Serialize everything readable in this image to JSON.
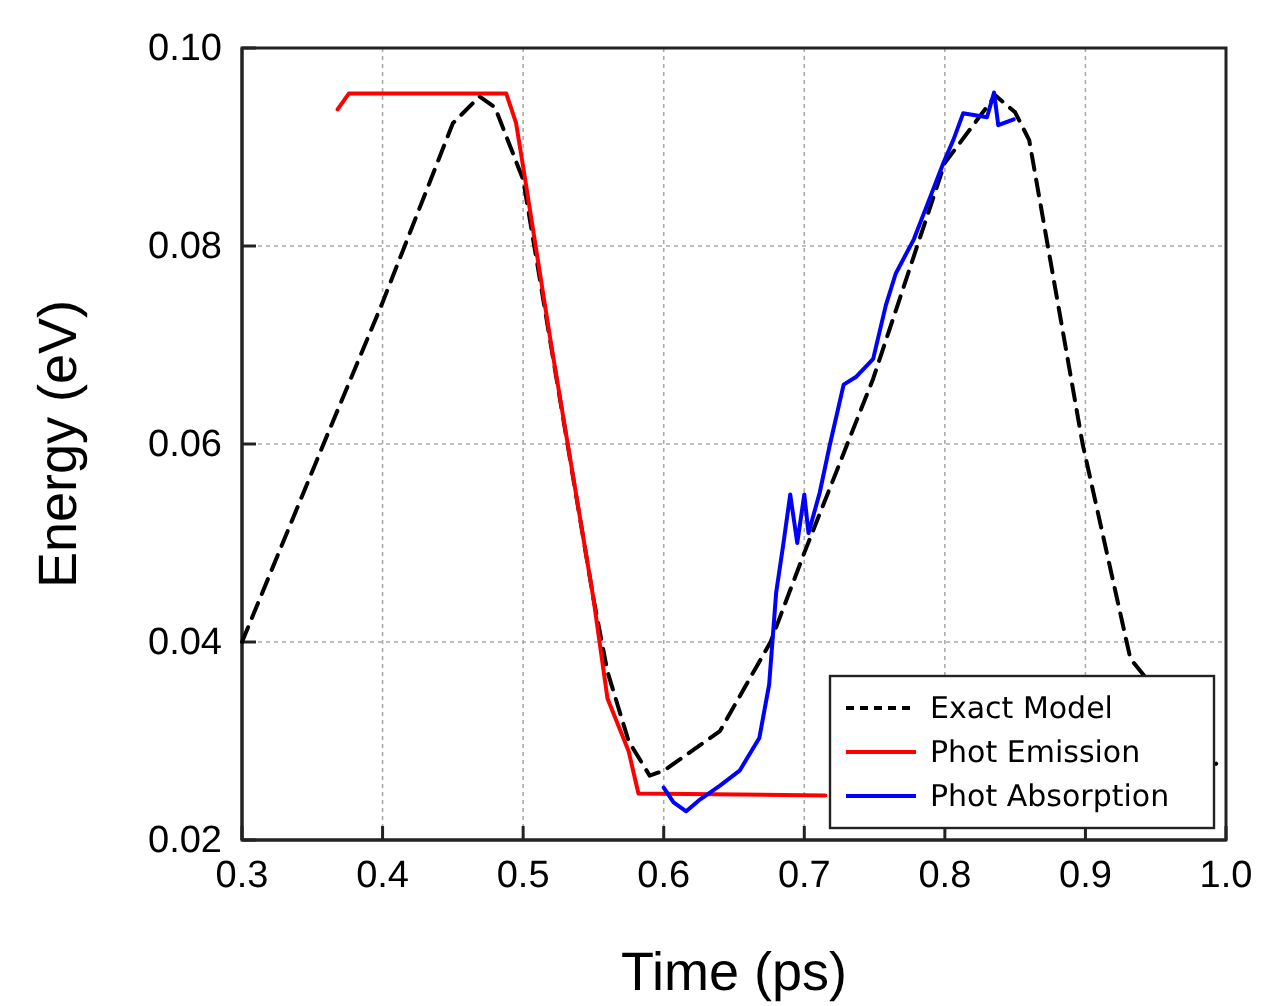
{
  "chart_data": {
    "type": "line",
    "xlabel": "Time (ps)",
    "ylabel": "Energy (eV)",
    "xlim": [
      0.3,
      1.0
    ],
    "xticks": [
      0.3,
      0.4,
      0.5,
      0.6,
      0.7,
      0.8,
      0.9,
      {
        "value": 1.0,
        "label": "1.0"
      }
    ],
    "ylim": [
      0.02,
      0.1
    ],
    "yticks": [
      0.02,
      0.04,
      0.06,
      0.08,
      {
        "value": 0.1,
        "label": "0.10"
      }
    ],
    "grid": true,
    "legend": "bottom right",
    "marker": "none",
    "series": [
      {
        "name": "Exact Model",
        "color": "#000000",
        "line_style": "dashed",
        "x": [
          0.3,
          0.358,
          0.4,
          0.45,
          0.469,
          0.48,
          0.5,
          0.55,
          0.56,
          0.575,
          0.59,
          0.6,
          0.64,
          0.676,
          0.7,
          0.749,
          0.8,
          0.836,
          0.85,
          0.86,
          0.898,
          0.932,
          0.993
        ],
        "values": [
          0.04,
          0.06,
          0.0743,
          0.0924,
          0.0951,
          0.094,
          0.0867,
          0.0444,
          0.037,
          0.03,
          0.0265,
          0.027,
          0.031,
          0.04,
          0.049,
          0.0666,
          0.0884,
          0.0952,
          0.0935,
          0.0907,
          0.06,
          0.0383,
          0.0277
        ]
      },
      {
        "name": "Phot Emission",
        "color": "#ff0000",
        "line_style": "solid",
        "x": [
          0.368,
          0.376,
          0.488,
          0.495,
          0.5,
          0.52,
          0.55,
          0.56,
          0.575,
          0.582,
          0.715
        ],
        "values": [
          0.0938,
          0.0954,
          0.0954,
          0.0924,
          0.088,
          0.07,
          0.0444,
          0.0343,
          0.029,
          0.0247,
          0.0245
        ]
      },
      {
        "name": "Phot Absorption",
        "color": "#0000ff",
        "line_style": "solid",
        "x": [
          0.6,
          0.607,
          0.616,
          0.625,
          0.64,
          0.654,
          0.668,
          0.675,
          0.68,
          0.685,
          0.69,
          0.695,
          0.7,
          0.703,
          0.711,
          0.718,
          0.728,
          0.737,
          0.745,
          0.749,
          0.758,
          0.765,
          0.778,
          0.787,
          0.799,
          0.806,
          0.813,
          0.83,
          0.835,
          0.838,
          0.849
        ],
        "values": [
          0.0253,
          0.0238,
          0.0229,
          0.024,
          0.0255,
          0.027,
          0.0303,
          0.0357,
          0.045,
          0.0498,
          0.0549,
          0.05,
          0.0549,
          0.051,
          0.0551,
          0.0598,
          0.066,
          0.0668,
          0.068,
          0.0686,
          0.074,
          0.0772,
          0.0807,
          0.084,
          0.0884,
          0.0907,
          0.0934,
          0.093,
          0.0955,
          0.0922,
          0.0928
        ]
      }
    ]
  }
}
